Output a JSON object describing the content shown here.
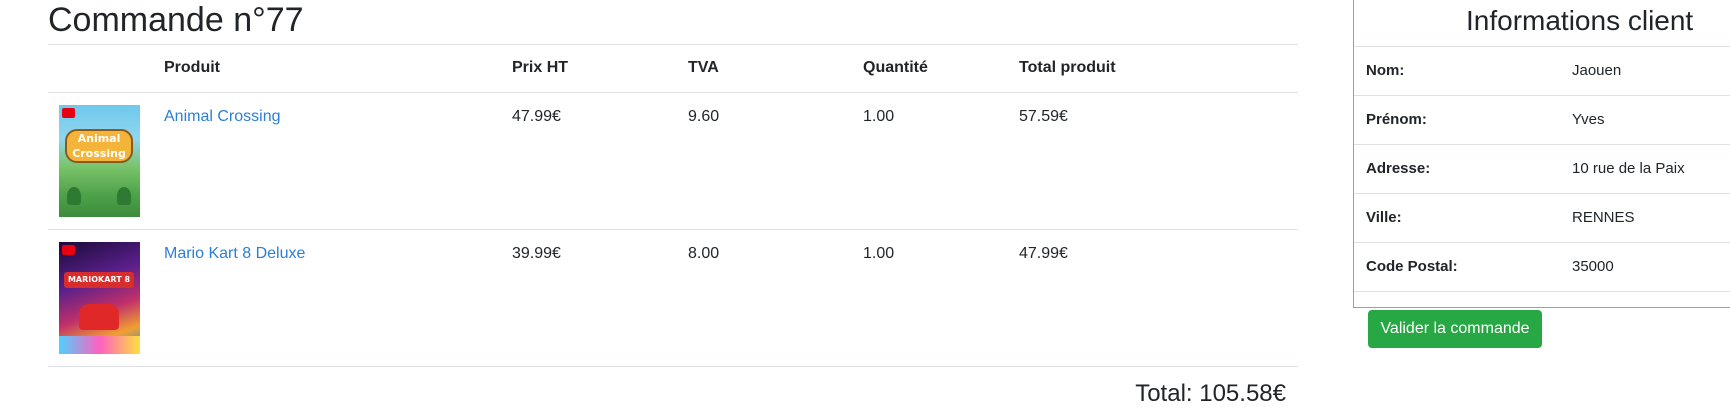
{
  "order": {
    "title": "Commande n°77",
    "columns": {
      "image": "",
      "product": "Produit",
      "price_ht": "Prix HT",
      "tva": "TVA",
      "quantity": "Quantité",
      "total_product": "Total produit"
    },
    "rows": [
      {
        "product": "Animal Crossing",
        "price_ht": "47.99€",
        "tva": "9.60",
        "quantity": "1.00",
        "total_product": "57.59€"
      },
      {
        "product": "Mario Kart 8 Deluxe",
        "price_ht": "39.99€",
        "tva": "8.00",
        "quantity": "1.00",
        "total_product": "47.99€"
      }
    ],
    "total": "Total: 105.58€"
  },
  "client": {
    "title": "Informations client",
    "fields": [
      {
        "label": "Nom:",
        "value": "Jaouen"
      },
      {
        "label": "Prénom:",
        "value": "Yves"
      },
      {
        "label": "Adresse:",
        "value": "10 rue de la Paix"
      },
      {
        "label": "Ville:",
        "value": "RENNES"
      },
      {
        "label": "Code Postal:",
        "value": "35000"
      }
    ]
  },
  "actions": {
    "validate_label": "Valider la commande"
  },
  "colors": {
    "link": "#2b7fd8",
    "success": "#28a745",
    "border": "#dee2e6"
  }
}
